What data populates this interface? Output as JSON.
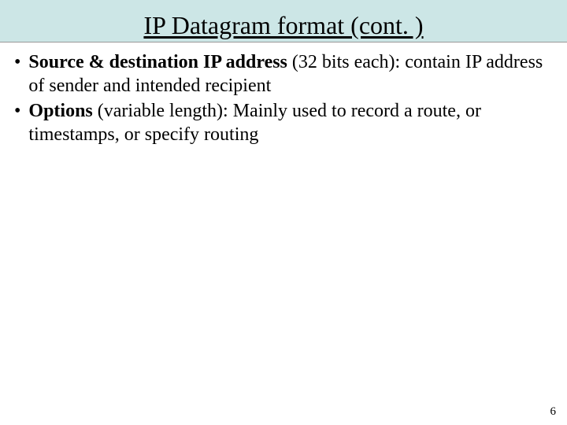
{
  "title": "IP Datagram format (cont. )",
  "bullets": [
    {
      "bold": "Source & destination IP address",
      "rest": " (32 bits each): contain IP address of sender and intended recipient"
    },
    {
      "bold": "Options",
      "rest": " (variable length): Mainly used to record a route, or timestamps, or specify routing"
    }
  ],
  "page_number": "6",
  "colors": {
    "title_bg": "#cce6e6",
    "text": "#000000",
    "page_bg": "#ffffff"
  },
  "typography": {
    "title_fontsize": 32,
    "body_fontsize": 24,
    "page_number_fontsize": 15,
    "font_family": "Times New Roman"
  }
}
